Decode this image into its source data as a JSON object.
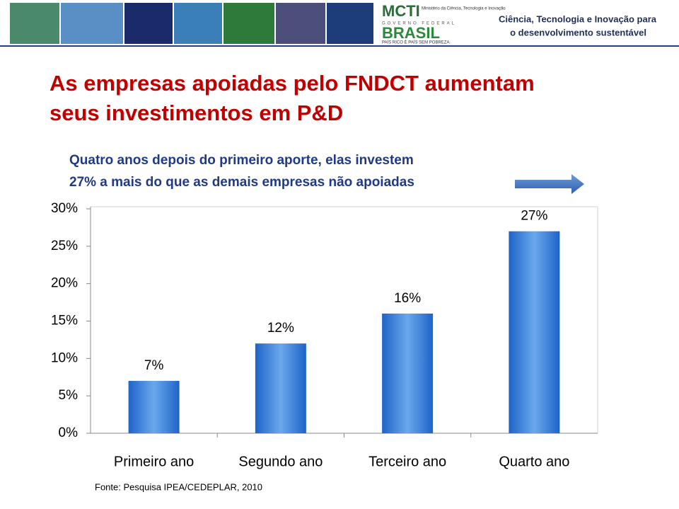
{
  "header": {
    "logo": "MCTI",
    "ministry": "Ministério da Ciência, Tecnologia e Inovação",
    "government": "GOVERNO FEDERAL",
    "country": "BRASIL",
    "motto": "PAÍS RICO É PAÍS SEM POBREZA",
    "tagline": [
      "Ciência, Tecnologia e Inovação para",
      "o desenvolvimento sustentável"
    ]
  },
  "slide_title": [
    "As empresas apoiadas pelo FNDCT aumentam",
    "seus investimentos em P&D"
  ],
  "chart_data": {
    "type": "bar",
    "subtitle": [
      "Quatro anos depois do primeiro aporte, elas investem",
      "27% a mais do que as demais empresas não apoiadas"
    ],
    "categories": [
      "Primeiro ano",
      "Segundo ano",
      "Terceiro ano",
      "Quarto ano"
    ],
    "values": [
      7,
      12,
      16,
      27
    ],
    "value_labels": [
      "7%",
      "12%",
      "16%",
      "27%"
    ],
    "color": "#1f6fd0",
    "ylim": [
      0,
      30
    ],
    "yticks": [
      {
        "value": 0,
        "label": "0%"
      },
      {
        "value": 5,
        "label": "5%"
      },
      {
        "value": 10,
        "label": "10%"
      },
      {
        "value": 15,
        "label": "15%"
      },
      {
        "value": 20,
        "label": "20%"
      },
      {
        "value": 25,
        "label": "25%"
      },
      {
        "value": 30,
        "label": "30%"
      }
    ],
    "grid": false,
    "source": "Fonte: Pesquisa IPEA/CEDEPLAR, 2010"
  }
}
